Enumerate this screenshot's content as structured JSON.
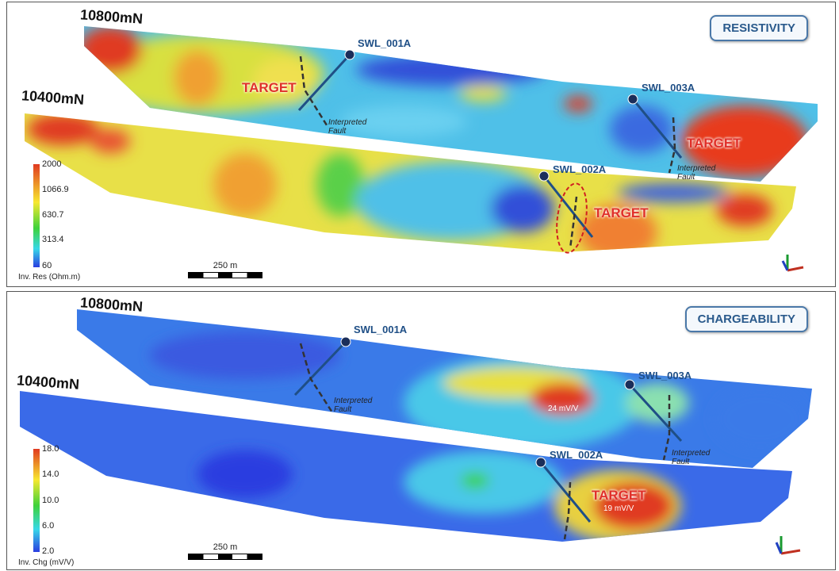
{
  "panels": [
    {
      "title": "RESISTIVITY",
      "sections": [
        "10800mN",
        "10400mN"
      ],
      "wells": [
        "SWL_001A",
        "SWL_003A",
        "SWL_002A"
      ],
      "targets": [
        "TARGET",
        "TARGET",
        "TARGET"
      ],
      "faults": [
        "Interpreted Fault",
        "Interpreted Fault"
      ],
      "legend": {
        "title": "Inv. Res (Ohm.m)",
        "ticks": [
          "2000",
          "1066.9",
          "630.7",
          "313.4",
          "60"
        ]
      },
      "scale": "250 m"
    },
    {
      "title": "CHARGEABILITY",
      "sections": [
        "10800mN",
        "10400mN"
      ],
      "wells": [
        "SWL_001A",
        "SWL_003A",
        "SWL_002A"
      ],
      "targets": [
        "TARGET"
      ],
      "values": [
        "24 mV/V",
        "19 mV/V"
      ],
      "faults": [
        "Interpreted Fault",
        "Interpreted Fault"
      ],
      "legend": {
        "title": "Inv. Chg (mV/V)",
        "ticks": [
          "18.0",
          "14.0",
          "10.0",
          "6.0",
          "2.0"
        ]
      },
      "scale": "250 m"
    }
  ],
  "colors": {
    "colorbar": [
      "#e03a20",
      "#f7e830",
      "#3ed23a",
      "#38d8e8",
      "#2a3ee0"
    ],
    "title_badge": "#2a5a8c",
    "target": "#e0302a"
  }
}
